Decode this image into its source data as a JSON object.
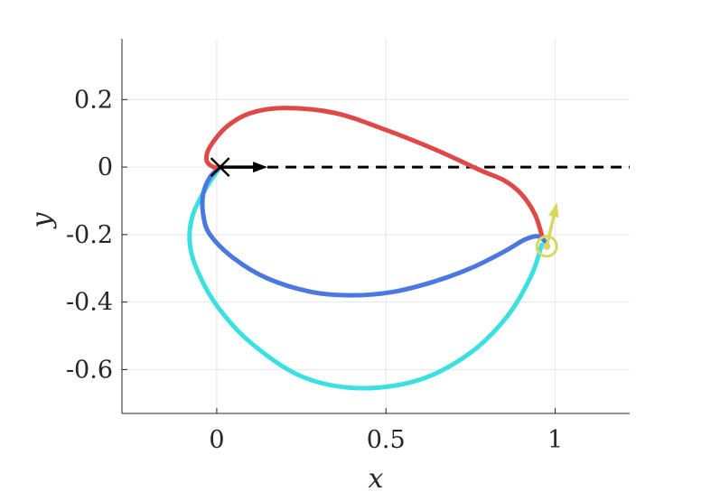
{
  "chart_data": {
    "type": "line",
    "xlabel": "x",
    "ylabel": "y",
    "xlim": [
      -0.28,
      1.22
    ],
    "ylim": [
      -0.73,
      0.38
    ],
    "x_ticks": [
      0,
      0.5,
      1
    ],
    "x_tick_labels": [
      "0",
      "0.5",
      "1"
    ],
    "y_ticks": [
      0.2,
      0,
      -0.2,
      -0.4,
      -0.6
    ],
    "y_tick_labels": [
      "0.2",
      "0",
      "-0.2",
      "-0.4",
      "-0.6"
    ],
    "grid": true,
    "series": [
      {
        "color": "#e04848",
        "x": [
          0.96,
          0.94,
          0.9,
          0.85,
          0.78,
          0.65,
          0.5,
          0.35,
          0.2,
          0.1,
          0.03,
          -0.02,
          -0.03,
          -0.01,
          0.01
        ],
        "y": [
          -0.2,
          -0.14,
          -0.08,
          -0.04,
          -0.01,
          0.05,
          0.11,
          0.16,
          0.175,
          0.16,
          0.12,
          0.06,
          0.02,
          0.0,
          0.0
        ]
      },
      {
        "color": "#4a78e0",
        "x": [
          0.01,
          -0.02,
          -0.04,
          -0.04,
          -0.02,
          0.05,
          0.15,
          0.28,
          0.4,
          0.52,
          0.64,
          0.75,
          0.85,
          0.91,
          0.95,
          0.97
        ],
        "y": [
          0.0,
          -0.03,
          -0.08,
          -0.14,
          -0.2,
          -0.27,
          -0.33,
          -0.37,
          -0.38,
          -0.37,
          -0.34,
          -0.3,
          -0.25,
          -0.215,
          -0.205,
          -0.22
        ]
      },
      {
        "color": "#3de0e0",
        "x": [
          0.01,
          -0.03,
          -0.07,
          -0.08,
          -0.06,
          0.0,
          0.1,
          0.25,
          0.42,
          0.6,
          0.75,
          0.86,
          0.93,
          0.96
        ],
        "y": [
          0.0,
          -0.06,
          -0.14,
          -0.22,
          -0.3,
          -0.41,
          -0.52,
          -0.62,
          -0.655,
          -0.63,
          -0.55,
          -0.44,
          -0.32,
          -0.23
        ]
      }
    ],
    "reference_line": {
      "style": "dashed",
      "color": "#000000",
      "y": 0,
      "x": [
        0.15,
        1.22
      ]
    },
    "start_marker": {
      "shape": "x",
      "color": "#000000",
      "x": 0.01,
      "y": 0.0
    },
    "start_arrow": {
      "color": "#000000",
      "x": 0.01,
      "y": 0.0,
      "dx": 0.14,
      "dy": 0.0
    },
    "end_marker": {
      "shape": "circle",
      "color": "#d6d860",
      "x": 0.975,
      "y": -0.235
    },
    "end_arrow": {
      "color": "#d6d860",
      "x": 0.975,
      "y": -0.235,
      "dx": 0.03,
      "dy": 0.13
    }
  }
}
